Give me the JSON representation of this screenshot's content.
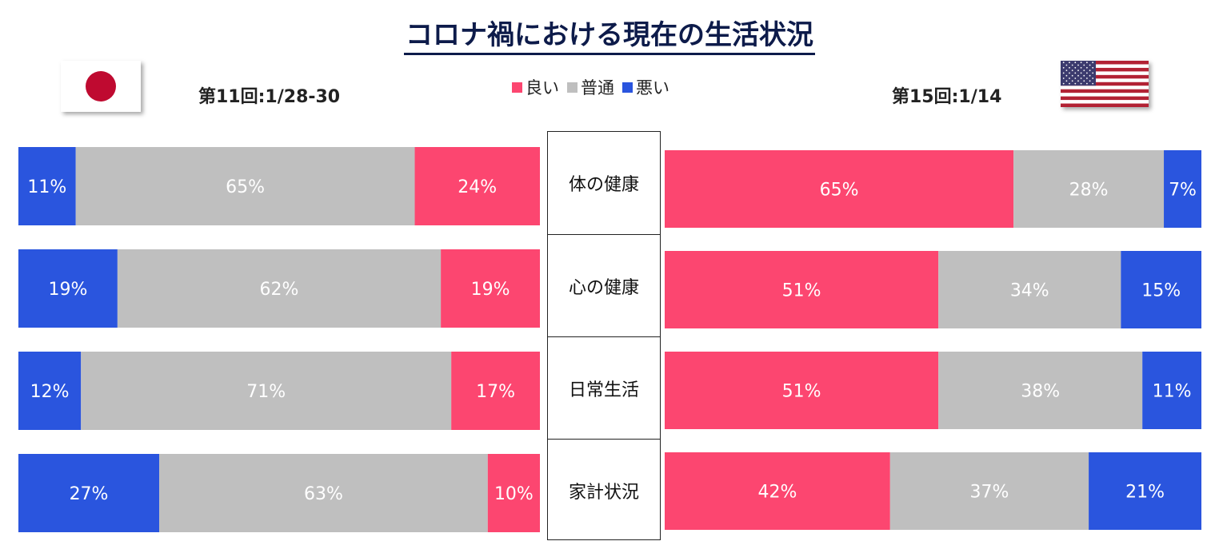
{
  "title": "コロナ禍における現在の生活状況",
  "legend": [
    {
      "label": "良い",
      "color": "#fc4670"
    },
    {
      "label": "普通",
      "color": "#bfbfbf"
    },
    {
      "label": "悪い",
      "color": "#2a55de"
    }
  ],
  "japan": {
    "survey_label": "第11回:1/28-30",
    "flag": "japan-flag-icon"
  },
  "usa": {
    "survey_label": "第15回:1/14",
    "flag": "usa-flag-icon"
  },
  "categories": [
    "体の健康",
    "心の健康",
    "日常生活",
    "家計状況"
  ],
  "chart_data": [
    {
      "type": "bar",
      "orientation": "horizontal",
      "stacked": true,
      "percent": true,
      "title": "第11回:1/28-30",
      "categories": [
        "体の健康",
        "心の健康",
        "日常生活",
        "家計状況"
      ],
      "series": [
        {
          "name": "悪い",
          "color": "#2a55de",
          "values": [
            11,
            19,
            12,
            27
          ],
          "labels": [
            "11%",
            "19%",
            "12%",
            "27%"
          ]
        },
        {
          "name": "普通",
          "color": "#bfbfbf",
          "values": [
            65,
            62,
            71,
            63
          ],
          "labels": [
            "65%",
            "62%",
            "71%",
            "63%"
          ]
        },
        {
          "name": "良い",
          "color": "#fc4670",
          "values": [
            24,
            19,
            17,
            10
          ],
          "labels": [
            "24%",
            "19%",
            "17%",
            "10%"
          ]
        }
      ]
    },
    {
      "type": "bar",
      "orientation": "horizontal",
      "stacked": true,
      "percent": true,
      "title": "第15回:1/14",
      "categories": [
        "体の健康",
        "心の健康",
        "日常生活",
        "家計状況"
      ],
      "series": [
        {
          "name": "良い",
          "color": "#fc4670",
          "values": [
            65,
            51,
            51,
            42
          ],
          "labels": [
            "65%",
            "51%",
            "51%",
            "42%"
          ]
        },
        {
          "name": "普通",
          "color": "#bfbfbf",
          "values": [
            28,
            34,
            38,
            37
          ],
          "labels": [
            "28%",
            "34%",
            "38%",
            "37%"
          ]
        },
        {
          "name": "悪い",
          "color": "#2a55de",
          "values": [
            7,
            15,
            11,
            21
          ],
          "labels": [
            "7%",
            "15%",
            "11%",
            "21%"
          ]
        }
      ]
    }
  ]
}
